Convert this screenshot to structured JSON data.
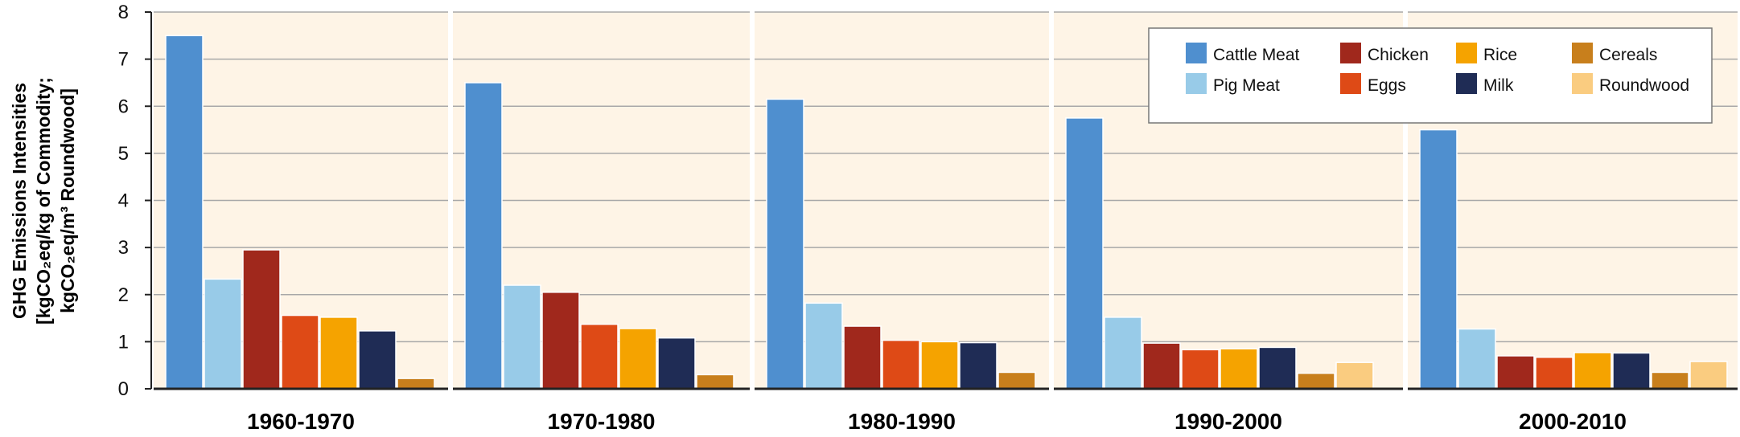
{
  "chart_data": {
    "type": "bar",
    "ylabel_lines": [
      "GHG Emissions Intensities",
      "[kgCO₂eq/kg of Commodity;",
      "kgCO₂eq/m³ Roundwood]"
    ],
    "ylim": [
      0,
      8
    ],
    "yticks": [
      "0",
      "1",
      "2",
      "3",
      "4",
      "5",
      "6",
      "7",
      "8"
    ],
    "grid": true,
    "legend_position": "top-right",
    "panels": [
      "1960-1970",
      "1970-1980",
      "1980-1990",
      "1990-2000",
      "2000-2010"
    ],
    "series": [
      {
        "name": "Cattle Meat",
        "color": "#4F8FCF",
        "values": [
          7.5,
          6.5,
          6.15,
          5.75,
          5.5
        ]
      },
      {
        "name": "Pig Meat",
        "color": "#98CBE8",
        "values": [
          2.33,
          2.2,
          1.82,
          1.52,
          1.27
        ]
      },
      {
        "name": "Chicken",
        "color": "#A0281C",
        "values": [
          2.95,
          2.05,
          1.33,
          0.97,
          0.7
        ]
      },
      {
        "name": "Eggs",
        "color": "#DE4A16",
        "values": [
          1.56,
          1.37,
          1.03,
          0.83,
          0.67
        ]
      },
      {
        "name": "Rice",
        "color": "#F5A300",
        "values": [
          1.52,
          1.28,
          1.0,
          0.85,
          0.77
        ]
      },
      {
        "name": "Milk",
        "color": "#1F2C55",
        "values": [
          1.23,
          1.08,
          0.98,
          0.88,
          0.76
        ]
      },
      {
        "name": "Cereals",
        "color": "#C87F1C",
        "values": [
          0.22,
          0.3,
          0.35,
          0.33,
          0.35
        ]
      },
      {
        "name": "Roundwood",
        "color": "#FACC80",
        "values": [
          null,
          null,
          null,
          0.56,
          0.58
        ]
      }
    ],
    "legend_order": [
      "Cattle Meat",
      "Chicken",
      "Rice",
      "Cereals",
      "Pig Meat",
      "Eggs",
      "Milk",
      "Roundwood"
    ]
  }
}
